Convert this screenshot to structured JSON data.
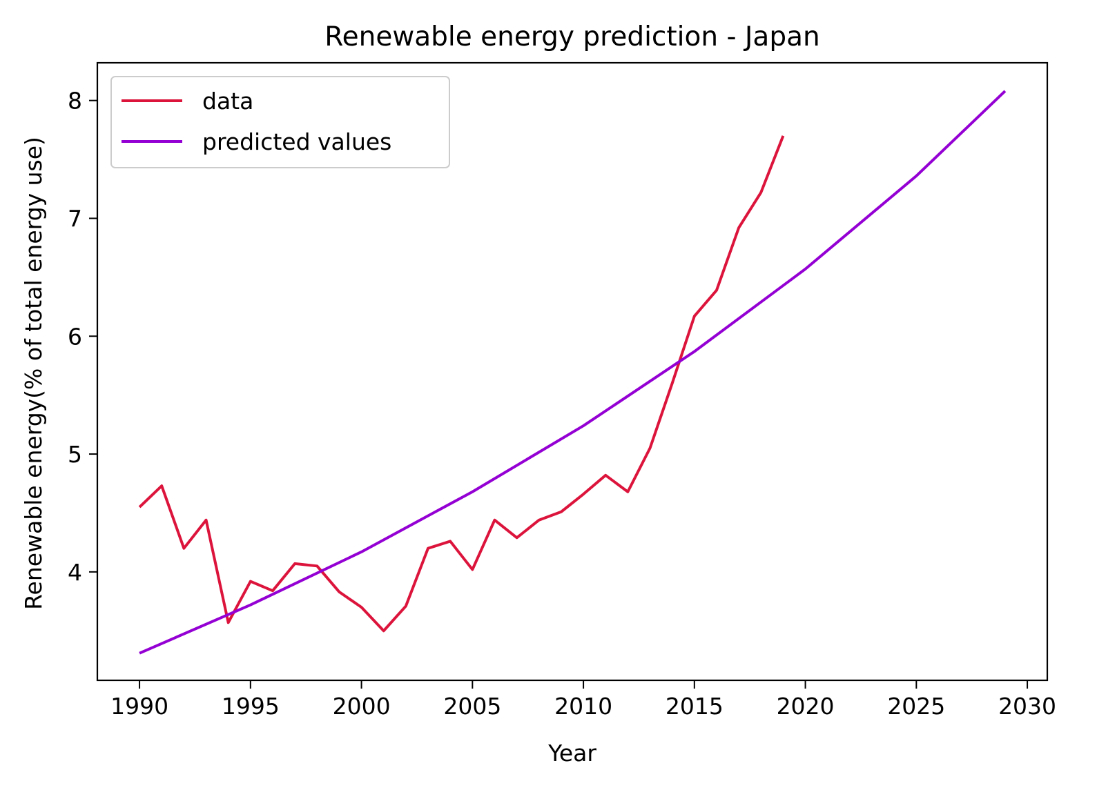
{
  "chart_data": {
    "type": "line",
    "title": "Renewable energy prediction - Japan",
    "xlabel": "Year",
    "ylabel": "Renewable energy(% of total energy use)",
    "xlim": [
      1988.1,
      2030.9
    ],
    "ylim": [
      3.08,
      8.32
    ],
    "xticks": [
      1990,
      1995,
      2000,
      2005,
      2010,
      2015,
      2020,
      2025,
      2030
    ],
    "yticks": [
      4,
      5,
      6,
      7,
      8
    ],
    "grid": false,
    "legend_position": "top-left",
    "series": [
      {
        "name": "data",
        "color": "#dc143c",
        "x": [
          1990,
          1991,
          1992,
          1993,
          1994,
          1995,
          1996,
          1997,
          1998,
          1999,
          2000,
          2001,
          2002,
          2003,
          2004,
          2005,
          2006,
          2007,
          2008,
          2009,
          2010,
          2011,
          2012,
          2013,
          2014,
          2015,
          2016,
          2017,
          2018,
          2019
        ],
        "y": [
          4.55,
          4.73,
          4.2,
          4.44,
          3.57,
          3.92,
          3.84,
          4.07,
          4.05,
          3.83,
          3.7,
          3.5,
          3.71,
          4.2,
          4.26,
          4.02,
          4.44,
          4.29,
          4.44,
          4.51,
          4.66,
          4.82,
          4.68,
          5.05,
          5.6,
          6.17,
          6.39,
          6.92,
          7.22,
          7.7
        ]
      },
      {
        "name": "predicted values",
        "color": "#9400d3",
        "x": [
          1990,
          1995,
          2000,
          2005,
          2010,
          2015,
          2020,
          2025,
          2029
        ],
        "y": [
          3.31,
          3.72,
          4.17,
          4.68,
          5.24,
          5.87,
          6.57,
          7.36,
          8.08
        ]
      }
    ]
  }
}
